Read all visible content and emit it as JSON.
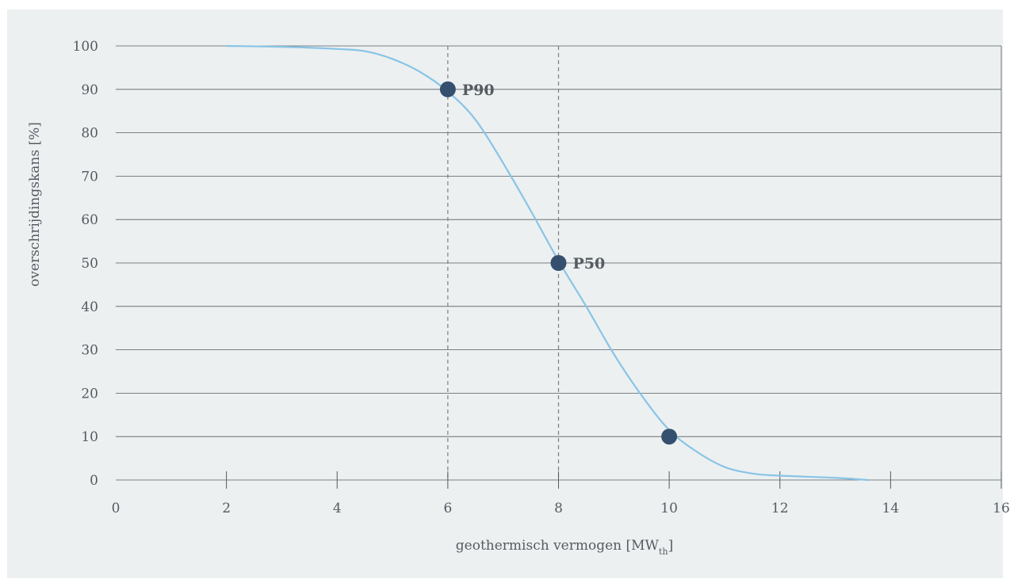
{
  "chart_data": {
    "type": "line",
    "xlabel": "geothermisch vermogen [MW",
    "xlabel_sub": "th",
    "xlabel_end": "]",
    "ylabel": "overschrijdingskans [%]",
    "xlim": [
      0,
      16
    ],
    "ylim": [
      0,
      100
    ],
    "xticks": [
      0,
      2,
      4,
      6,
      8,
      10,
      12,
      14,
      16
    ],
    "yticks": [
      0,
      10,
      20,
      30,
      40,
      50,
      60,
      70,
      80,
      90,
      100
    ],
    "grid": "horizontal",
    "series": [
      {
        "color": "#89c4e6",
        "x": [
          2.0,
          3.0,
          4.0,
          4.5,
          5.0,
          5.5,
          6.0,
          6.5,
          7.0,
          7.5,
          8.0,
          8.5,
          9.0,
          9.5,
          10.0,
          10.5,
          11.0,
          11.5,
          12.0,
          13.0,
          13.6
        ],
        "y": [
          100,
          99.8,
          99.3,
          98.8,
          97.0,
          94.0,
          89.5,
          83.0,
          73.0,
          62.0,
          50.5,
          40.0,
          29.0,
          19.5,
          11.5,
          6.5,
          3.0,
          1.5,
          1.0,
          0.5,
          0
        ]
      }
    ],
    "points": [
      {
        "x": 6.0,
        "y": 90,
        "label": "P90"
      },
      {
        "x": 8.0,
        "y": 50,
        "label": "P50"
      },
      {
        "x": 10.0,
        "y": 10,
        "label": ""
      }
    ],
    "vlines": [
      6.0,
      8.0
    ],
    "point_color": "#34506e",
    "grid_color": "#555b61",
    "vline_color": "#7a7f84"
  }
}
